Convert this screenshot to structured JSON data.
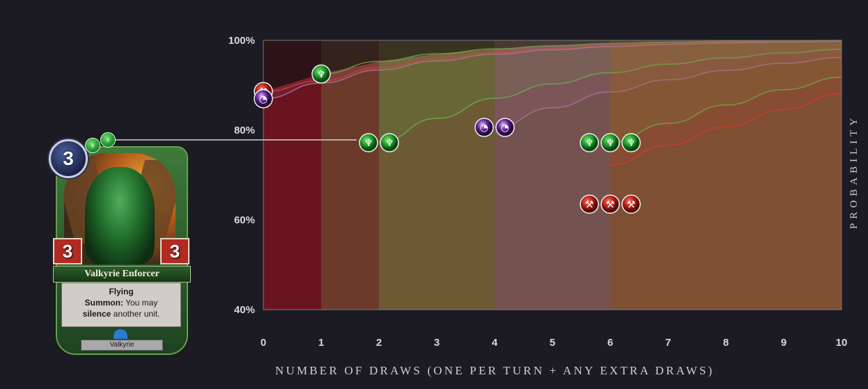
{
  "card": {
    "name": "Valkyrie Enforcer",
    "cost": "3",
    "attack": "3",
    "health": "3",
    "keyword": "Flying",
    "ability_prefix": "Summon:",
    "ability_text_1": "You may",
    "ability_bold": "silence",
    "ability_text_2": "another unit.",
    "type": "Valkyrie",
    "influence_icon": "primal-influence-icon",
    "influence_count": 2
  },
  "colors": {
    "background": "#1c1b24",
    "band_0_1": "#6a1420",
    "band_1_2": "#6b3a2b",
    "band_2_4": "#6b5a34",
    "band_4_6": "#74524f",
    "band_6_10": "#7f4f34",
    "green": "#5fb347",
    "purple": "#b46aa0",
    "red": "#cc3d2a"
  },
  "chart_data": {
    "type": "area",
    "xlabel": "NUMBER OF DRAWS (ONE PER TURN + ANY EXTRA DRAWS)",
    "ylabel": "PROBABILITY",
    "xlim": [
      0,
      10
    ],
    "ylim": [
      40,
      100
    ],
    "x_ticks": [
      "0",
      "1",
      "2",
      "3",
      "4",
      "5",
      "6",
      "7",
      "8",
      "9",
      "10"
    ],
    "y_ticks": [
      "40%",
      "60%",
      "80%",
      "100%"
    ],
    "x": [
      0,
      1,
      2,
      3,
      4,
      5,
      6,
      7,
      8,
      9,
      10
    ],
    "series": [
      {
        "color": "green",
        "requirement": "1 primal influence",
        "start_x": 1,
        "values": [
          null,
          92.5,
          95.3,
          97.0,
          98.1,
          98.8,
          99.3,
          99.6,
          99.8,
          99.9,
          100.0
        ]
      },
      {
        "color": "red",
        "requirement": "1 fire influence",
        "start_x": 0,
        "values": [
          88.6,
          91.0,
          93.9,
          95.8,
          97.2,
          98.1,
          98.8,
          99.2,
          99.5,
          99.7,
          99.8
        ]
      },
      {
        "color": "purple",
        "requirement": "1 shadow influence",
        "start_x": 0,
        "values": [
          87.0,
          90.5,
          93.4,
          95.4,
          96.9,
          97.9,
          98.6,
          99.1,
          99.4,
          99.6,
          99.8
        ]
      },
      {
        "color": "green",
        "requirement": "2 primal influence",
        "start_x": 2,
        "values": [
          null,
          null,
          77.2,
          82.6,
          87.1,
          90.3,
          92.8,
          94.7,
          96.1,
          97.2,
          98.0
        ]
      },
      {
        "color": "purple",
        "requirement": "2 shadow influence",
        "start_x": 4,
        "values": [
          null,
          null,
          null,
          null,
          80.6,
          85.0,
          88.5,
          91.2,
          93.3,
          94.9,
          96.2
        ]
      },
      {
        "color": "green",
        "requirement": "3 primal influence",
        "start_x": 6,
        "values": [
          null,
          null,
          null,
          null,
          null,
          null,
          77.2,
          81.5,
          85.6,
          89.0,
          91.8
        ]
      },
      {
        "color": "red",
        "requirement": "3 fire influence",
        "start_x": 6,
        "values": [
          null,
          null,
          null,
          null,
          null,
          null,
          72.3,
          76.6,
          80.7,
          84.6,
          88.1
        ]
      }
    ],
    "icon_groups": [
      {
        "icon": "primal-influence-icon",
        "count": 1,
        "x": 1,
        "y": 92.5
      },
      {
        "icon": "fire-influence-icon",
        "count": 1,
        "x": 0,
        "y": 88.6
      },
      {
        "icon": "shadow-influence-icon",
        "count": 1,
        "x": 0,
        "y": 87.0
      },
      {
        "icon": "primal-influence-icon",
        "count": 2,
        "x": 2,
        "y": 77.2
      },
      {
        "icon": "shadow-influence-icon",
        "count": 2,
        "x": 4,
        "y": 80.6
      },
      {
        "icon": "primal-influence-icon",
        "count": 3,
        "x": 6,
        "y": 77.2
      },
      {
        "icon": "fire-influence-icon",
        "count": 3,
        "x": 6,
        "y": 63.5
      }
    ]
  }
}
